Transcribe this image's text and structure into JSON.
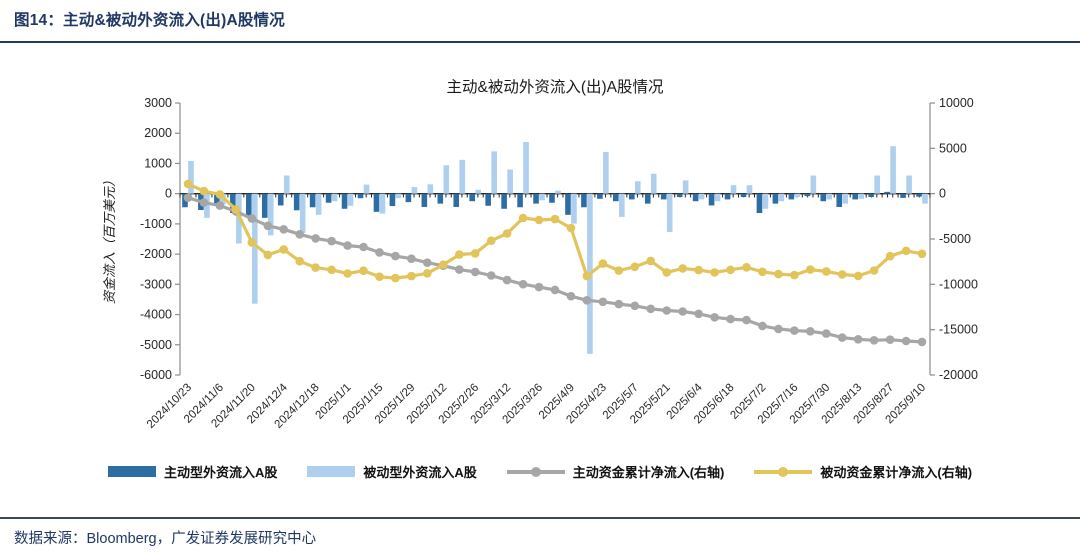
{
  "figure": {
    "header_title": "图14：主动&被动外资流入(出)A股情况",
    "source_note": "数据来源：Bloomberg，广发证券发展研究中心"
  },
  "chart_data": {
    "type": "bar",
    "subtype": "combo-bar-line-dual-axis",
    "title": "主动&被动外资流入(出)A股情况",
    "ylabel_left": "资金流入（百万美元）",
    "left_axis": {
      "min": -6000,
      "max": 3000,
      "tick_step": 1000
    },
    "right_axis": {
      "min": -20000,
      "max": 10000,
      "tick_step": 5000
    },
    "grid": false,
    "legend_position": "bottom",
    "x_tick_labels": [
      "2024/10/23",
      "2024/11/6",
      "2024/11/20",
      "2024/12/4",
      "2024/12/18",
      "2025/1/1",
      "2025/1/15",
      "2025/1/29",
      "2025/2/12",
      "2025/2/26",
      "2025/3/12",
      "2025/3/26",
      "2025/4/9",
      "2025/4/23",
      "2025/5/7",
      "2025/5/21",
      "2025/6/4",
      "2025/6/18",
      "2025/7/2",
      "2025/7/16",
      "2025/7/30",
      "2025/8/13",
      "2025/8/27",
      "2025/9/10"
    ],
    "categories": [
      "2024/10/23",
      "2024/10/30",
      "2024/11/6",
      "2024/11/13",
      "2024/11/20",
      "2024/11/27",
      "2024/12/4",
      "2024/12/11",
      "2024/12/18",
      "2024/12/25",
      "2025/1/1",
      "2025/1/8",
      "2025/1/15",
      "2025/1/22",
      "2025/1/29",
      "2025/2/5",
      "2025/2/12",
      "2025/2/19",
      "2025/2/26",
      "2025/3/5",
      "2025/3/12",
      "2025/3/19",
      "2025/3/26",
      "2025/4/2",
      "2025/4/9",
      "2025/4/16",
      "2025/4/23",
      "2025/4/30",
      "2025/5/7",
      "2025/5/14",
      "2025/5/21",
      "2025/5/28",
      "2025/6/4",
      "2025/6/11",
      "2025/6/18",
      "2025/6/25",
      "2025/7/2",
      "2025/7/9",
      "2025/7/16",
      "2025/7/23",
      "2025/7/30",
      "2025/8/6",
      "2025/8/13",
      "2025/8/20",
      "2025/8/27",
      "2025/9/3",
      "2025/9/10"
    ],
    "series": [
      {
        "name": "主动型外资流入A股",
        "type": "bar",
        "axis": "left",
        "color": "#2E6DA4",
        "values": [
          -450,
          -540,
          -330,
          -640,
          -780,
          -800,
          -390,
          -550,
          -450,
          -300,
          -500,
          -150,
          -600,
          -410,
          -280,
          -440,
          -330,
          -440,
          -250,
          -400,
          -500,
          -450,
          -330,
          -300,
          -700,
          -450,
          -170,
          -250,
          -190,
          -330,
          -190,
          -110,
          -250,
          -390,
          -190,
          -110,
          -640,
          -330,
          -190,
          -80,
          -250,
          -440,
          -190,
          -110,
          60,
          -140,
          -100
        ]
      },
      {
        "name": "被动型外资流入A股",
        "type": "bar",
        "axis": "left",
        "color": "#AECFEE",
        "values": [
          1080,
          -800,
          -360,
          -1650,
          -3640,
          -1380,
          600,
          -1300,
          -700,
          -250,
          -400,
          300,
          -660,
          -150,
          220,
          310,
          940,
          1120,
          130,
          1400,
          800,
          1710,
          -220,
          100,
          -990,
          -5300,
          1380,
          -770,
          410,
          660,
          -1270,
          440,
          -190,
          -250,
          280,
          280,
          -500,
          -250,
          -110,
          600,
          -190,
          -330,
          -170,
          600,
          1570,
          600,
          -330
        ]
      },
      {
        "name": "主动资金累计净流入(右轴)",
        "type": "line",
        "axis": "right",
        "color": "#A6A6A6",
        "values": [
          -450,
          -990,
          -1320,
          -1960,
          -2740,
          -3540,
          -3930,
          -4480,
          -4930,
          -5230,
          -5730,
          -5880,
          -6480,
          -6890,
          -7170,
          -7610,
          -7940,
          -8380,
          -8630,
          -9030,
          -9530,
          -9980,
          -10310,
          -10610,
          -11310,
          -11760,
          -11930,
          -12180,
          -12370,
          -12700,
          -12890,
          -13000,
          -13250,
          -13640,
          -13830,
          -13940,
          -14580,
          -14910,
          -15100,
          -15180,
          -15430,
          -15870,
          -16060,
          -16170,
          -16110,
          -16250,
          -16350
        ]
      },
      {
        "name": "被动资金累计净流入(右轴)",
        "type": "line",
        "axis": "right",
        "color": "#E2C45A",
        "values": [
          1080,
          280,
          -80,
          -1730,
          -5370,
          -6750,
          -6150,
          -7450,
          -8150,
          -8400,
          -8800,
          -8500,
          -9160,
          -9310,
          -9090,
          -8780,
          -7840,
          -6720,
          -6590,
          -5190,
          -4390,
          -2680,
          -2900,
          -2800,
          -3790,
          -9090,
          -7710,
          -8480,
          -8070,
          -7410,
          -8680,
          -8240,
          -8430,
          -8680,
          -8400,
          -8120,
          -8620,
          -8870,
          -8980,
          -8380,
          -8570,
          -8900,
          -9070,
          -8470,
          -6900,
          -6300,
          -6630
        ]
      }
    ]
  },
  "colors": {
    "header_navy": "#1F3864",
    "axis_gray": "#8c8c8c",
    "zero_line": "#262626"
  }
}
